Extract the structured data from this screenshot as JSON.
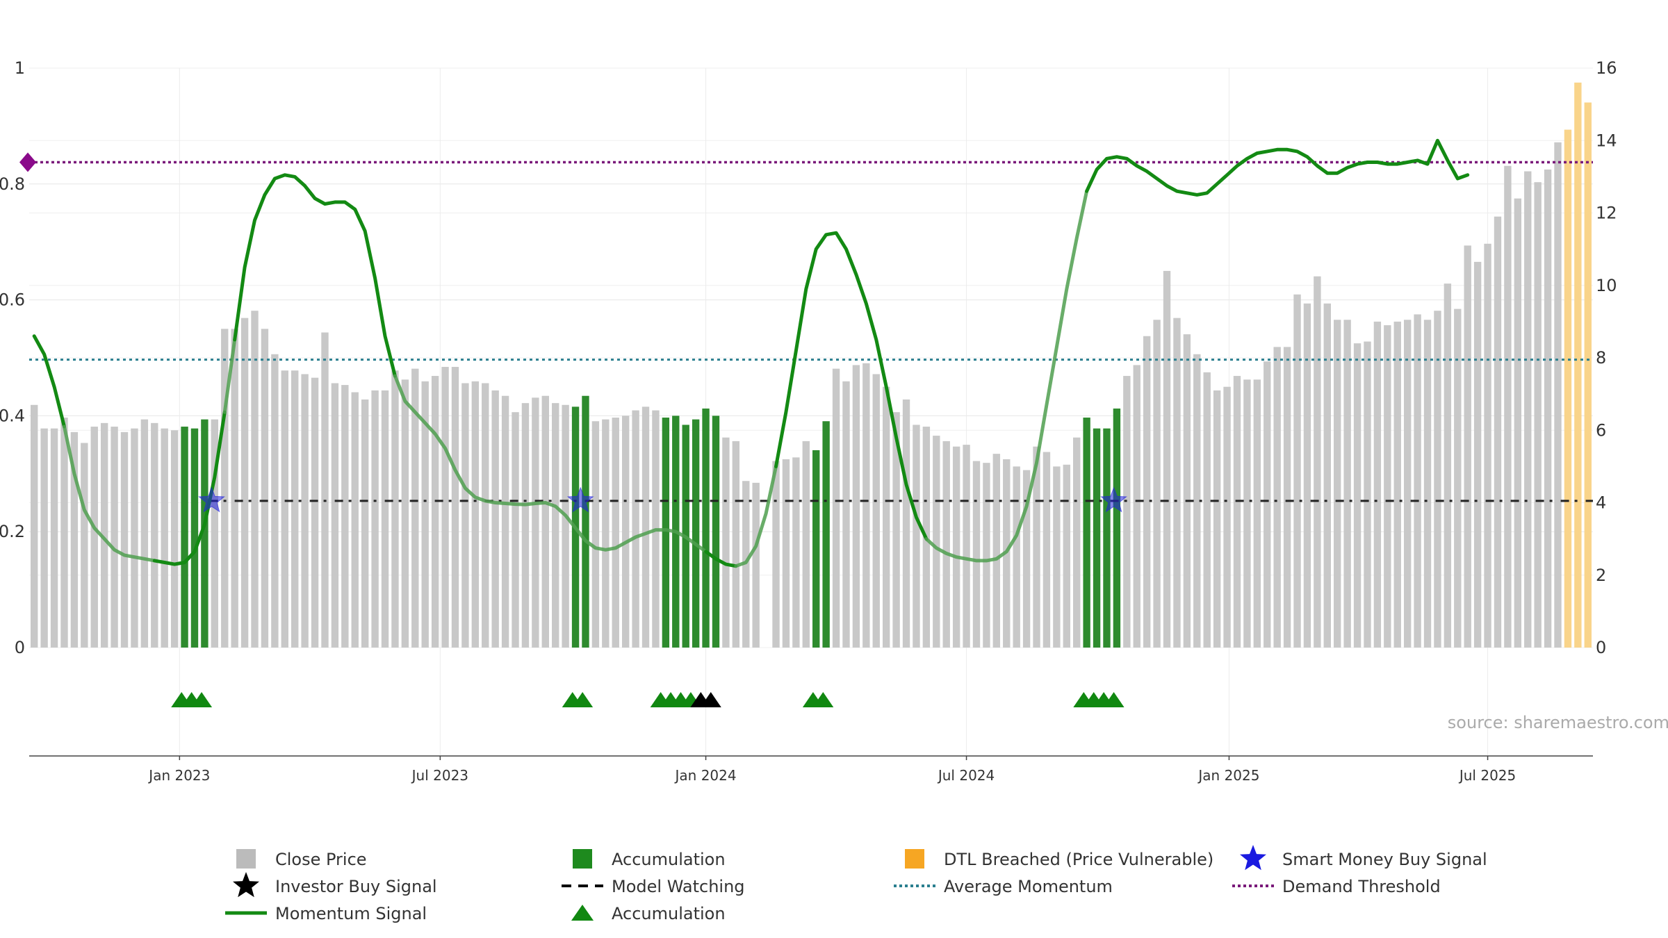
{
  "source_label": "source: sharemaestro.com",
  "colors": {
    "price": "#c8c8c8",
    "accumulation": "#2e8b2e",
    "dtl": "#f9d48a",
    "momentum": "#138a13",
    "average_momentum": "#2a7f8f",
    "demand_threshold": "#7a1a7a",
    "model_watching": "#222222",
    "smart_money": "#2222dd",
    "investor": "#000000",
    "accum_marker": "#118811"
  },
  "chart_data": {
    "type": "bar",
    "title": "",
    "xlabel": "",
    "ylabel": "",
    "x_ticks": [
      {
        "label": "Jan 2023",
        "week": 15
      },
      {
        "label": "Jul 2023",
        "week": 41
      },
      {
        "label": "Jan 2024",
        "week": 67.5
      },
      {
        "label": "Jul 2024",
        "week": 93.5
      },
      {
        "label": "Jan 2025",
        "week": 119.7
      },
      {
        "label": "Jul 2025",
        "week": 145.5
      }
    ],
    "left_axis": {
      "range": [
        0,
        1
      ],
      "ticks": [
        "0",
        "0.2",
        "0.4",
        "0.6",
        "0.8",
        "1"
      ],
      "tick_values": [
        0,
        0.2,
        0.4,
        0.6,
        0.8,
        1
      ]
    },
    "right_axis": {
      "range": [
        0,
        16
      ],
      "ticks": [
        "0",
        "2",
        "4",
        "6",
        "8",
        "10",
        "12",
        "14",
        "16"
      ],
      "tick_values": [
        0,
        2,
        4,
        6,
        8,
        10,
        12,
        14,
        16
      ]
    },
    "grid": true,
    "price_values": [
      6.7,
      6.05,
      6.05,
      6.35,
      5.95,
      5.65,
      6.1,
      6.2,
      6.1,
      5.95,
      6.05,
      6.3,
      6.2,
      6.05,
      6.0,
      6.1,
      6.05,
      6.3,
      6.3,
      8.8,
      8.8,
      9.1,
      9.3,
      8.8,
      8.1,
      7.65,
      7.65,
      7.55,
      7.45,
      8.7,
      7.3,
      7.25,
      7.05,
      6.85,
      7.1,
      7.1,
      7.65,
      7.4,
      7.7,
      7.35,
      7.5,
      7.75,
      7.75,
      7.3,
      7.35,
      7.3,
      7.1,
      6.95,
      6.5,
      6.75,
      6.9,
      6.95,
      6.75,
      6.7,
      6.65,
      6.95,
      6.25,
      6.3,
      6.35,
      6.4,
      6.55,
      6.65,
      6.55,
      6.35,
      6.4,
      6.15,
      6.3,
      6.6,
      6.4,
      5.8,
      5.7,
      4.6,
      4.55,
      0,
      5.15,
      5.2,
      5.25,
      5.7,
      5.45,
      6.25,
      7.7,
      7.35,
      7.8,
      7.85,
      7.55,
      7.2,
      6.5,
      6.85,
      6.15,
      6.1,
      5.85,
      5.7,
      5.55,
      5.6,
      5.15,
      5.1,
      5.35,
      5.2,
      5.0,
      4.9,
      5.55,
      5.4,
      5.0,
      5.05,
      5.8,
      6.35,
      6.05,
      6.05,
      6.6,
      7.5,
      7.8,
      8.6,
      9.05,
      10.4,
      9.1,
      8.65,
      8.1,
      7.6,
      7.1,
      7.2,
      7.5,
      7.4,
      7.4,
      7.9,
      8.3,
      8.3,
      9.75,
      9.5,
      10.25,
      9.5,
      9.05,
      9.05,
      8.4,
      8.45,
      9.0,
      8.9,
      9.0,
      9.05,
      9.2,
      9.05,
      9.3,
      10.05,
      9.35,
      11.1,
      10.65,
      11.15,
      11.9,
      13.3,
      12.4,
      13.15,
      12.85,
      13.2,
      13.95,
      14.3,
      15.6,
      15.05
    ],
    "bar_categories": {
      "accumulation": [
        15,
        16,
        17,
        54,
        55,
        63,
        64,
        65,
        66,
        67,
        68,
        78,
        79,
        105,
        106,
        107,
        108
      ],
      "dtl": [
        153,
        154,
        155,
        156
      ]
    },
    "momentum_values": [
      8.6,
      8.1,
      7.2,
      6.1,
      4.8,
      3.8,
      3.3,
      3.0,
      2.7,
      2.55,
      2.5,
      2.45,
      2.4,
      2.35,
      2.3,
      2.35,
      2.65,
      3.4,
      4.7,
      6.5,
      8.5,
      10.5,
      11.8,
      12.5,
      12.95,
      13.05,
      13.0,
      12.75,
      12.4,
      12.25,
      12.3,
      12.3,
      12.1,
      11.5,
      10.2,
      8.6,
      7.5,
      6.8,
      6.5,
      6.2,
      5.9,
      5.5,
      4.9,
      4.4,
      4.15,
      4.05,
      4.0,
      3.98,
      3.96,
      3.95,
      3.98,
      4.0,
      3.9,
      3.65,
      3.3,
      2.95,
      2.75,
      2.7,
      2.75,
      2.9,
      3.05,
      3.15,
      3.25,
      3.25,
      3.2,
      3.05,
      2.85,
      2.65,
      2.45,
      2.3,
      2.25,
      2.35,
      2.8,
      3.7,
      5.0,
      6.5,
      8.2,
      9.9,
      11.0,
      11.4,
      11.45,
      11.0,
      10.3,
      9.5,
      8.5,
      7.2,
      5.8,
      4.5,
      3.6,
      3.0,
      2.75,
      2.6,
      2.5,
      2.45,
      2.4,
      2.4,
      2.45,
      2.65,
      3.1,
      3.9,
      5.1,
      6.7,
      8.3,
      9.9,
      11.3,
      12.6,
      13.2,
      13.5,
      13.55,
      13.5,
      13.3,
      13.15,
      12.95,
      12.75,
      12.6,
      12.55,
      12.5,
      12.55,
      12.8,
      13.05,
      13.3,
      13.5,
      13.65,
      13.7,
      13.75,
      13.75,
      13.7,
      13.55,
      13.3,
      13.1,
      13.1,
      13.25,
      13.35,
      13.4,
      13.4,
      13.35,
      13.35,
      13.4,
      13.45,
      13.35,
      14.0,
      13.45,
      12.95,
      13.05
    ],
    "momentum_fade_ranges": [
      [
        3,
        12
      ],
      [
        19,
        20
      ],
      [
        36,
        67
      ],
      [
        70,
        74
      ],
      [
        89,
        105
      ],
      [
        150,
        153
      ]
    ],
    "average_momentum": 7.95,
    "demand_threshold": 13.4,
    "model_watching": 4.05,
    "smart_money_signals": [
      {
        "week": 18.2,
        "value": 4.05
      },
      {
        "week": 55.0,
        "value": 4.05
      },
      {
        "week": 108.2,
        "value": 4.05
      }
    ],
    "accumulation_markers": [
      15.2,
      16.2,
      17.2,
      54.2,
      55.2,
      63.0,
      64.0,
      65.0,
      66.0,
      78.2,
      79.2,
      105.2,
      106.2,
      107.2,
      108.2
    ],
    "investor_markers": [
      67.0,
      68.0
    ],
    "legend": [
      {
        "label": "Close Price",
        "kind": "square",
        "color": "#bbbbbb",
        "col": 0,
        "row": 0
      },
      {
        "label": "Accumulation",
        "kind": "square",
        "color": "#1e8a1e",
        "col": 1,
        "row": 0
      },
      {
        "label": "DTL Breached (Price Vulnerable)",
        "kind": "square",
        "color": "#f6a623",
        "col": 2,
        "row": 0
      },
      {
        "label": "Smart Money Buy Signal",
        "kind": "star",
        "color": "#1a1ae0",
        "col": 3,
        "row": 0
      },
      {
        "label": "Investor Buy Signal",
        "kind": "star",
        "color": "#000000",
        "col": 0,
        "row": 1
      },
      {
        "label": "Model Watching",
        "kind": "dash",
        "color": "#000000",
        "col": 1,
        "row": 1
      },
      {
        "label": "Average Momentum",
        "kind": "dot",
        "color": "#2a7f8f",
        "col": 2,
        "row": 1
      },
      {
        "label": "Demand Threshold",
        "kind": "dot",
        "color": "#7a1a7a",
        "col": 3,
        "row": 1
      },
      {
        "label": "Momentum Signal",
        "kind": "line",
        "color": "#138a13",
        "col": 0,
        "row": 2
      },
      {
        "label": "Accumulation",
        "kind": "triangle",
        "color": "#118811",
        "col": 1,
        "row": 2
      }
    ]
  }
}
